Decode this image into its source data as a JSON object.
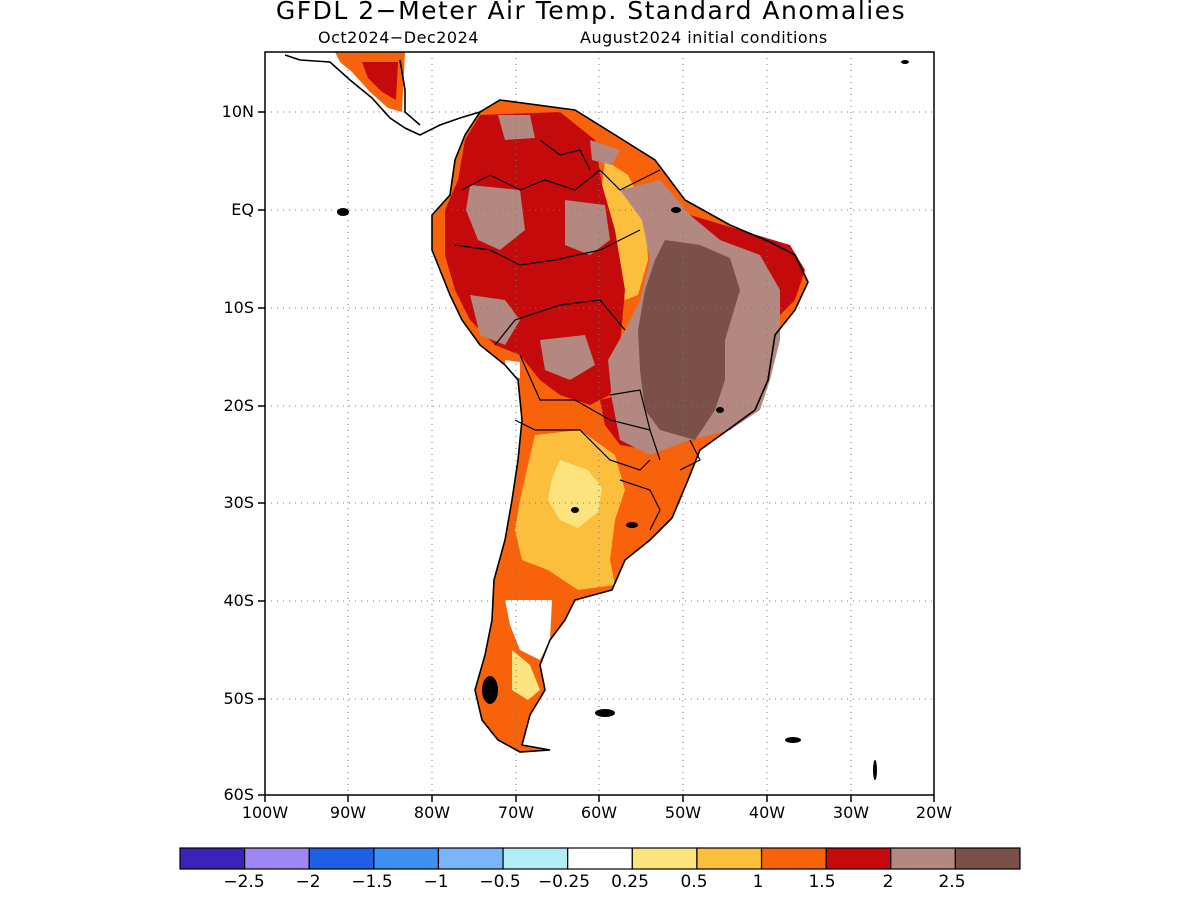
{
  "title": "GFDL 2−Meter Air Temp. Standard Anomalies",
  "subtitle_left": "Oct2024−Dec2024",
  "subtitle_right": "August2024 initial conditions",
  "lat_labels": [
    "10N",
    "EQ",
    "10S",
    "20S",
    "30S",
    "40S",
    "50S",
    "60S"
  ],
  "lon_labels": [
    "100W",
    "90W",
    "80W",
    "70W",
    "60W",
    "50W",
    "40W",
    "30W",
    "20W"
  ],
  "colorbar": {
    "colors": [
      "#3b22b8",
      "#9e87f5",
      "#1f5fe6",
      "#3d8ff2",
      "#79b5f8",
      "#b2ecf6",
      "#ffffff",
      "#fde37d",
      "#fbbf3d",
      "#f8620a",
      "#c40a0a",
      "#b38880",
      "#7a5048"
    ],
    "labels": [
      "−2.5",
      "−2",
      "−1.5",
      "−1",
      "−0.5",
      "−0.25",
      "0.25",
      "0.5",
      "1",
      "1.5",
      "2",
      "2.5"
    ]
  },
  "map_data": {
    "extent": {
      "lon": [
        -100,
        -20
      ],
      "lat": [
        -60,
        15
      ]
    },
    "grid_spacing_deg": 10,
    "grid_style": "dotted"
  }
}
